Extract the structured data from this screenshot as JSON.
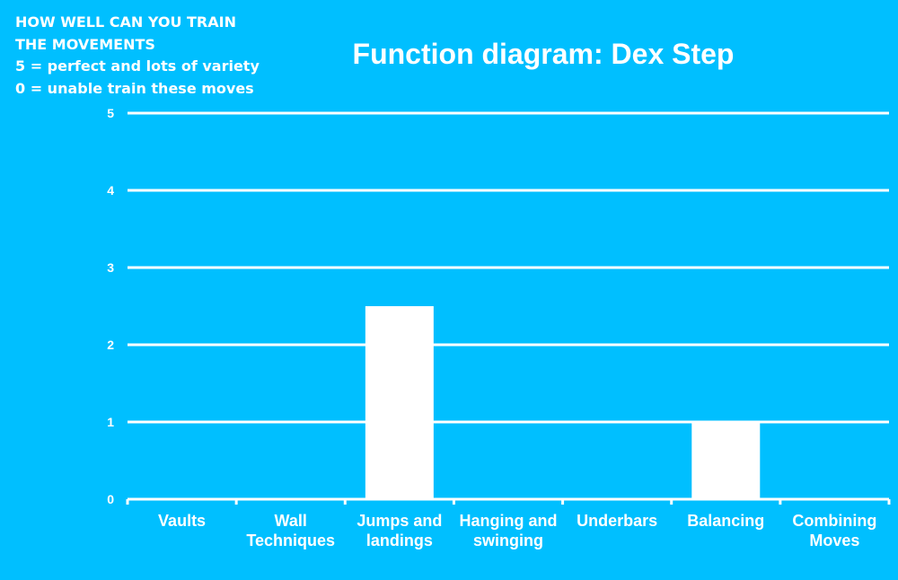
{
  "note": {
    "lines": [
      "HOW WELL CAN YOU TRAIN",
      "THE MOVEMENTS",
      "5 = perfect and lots of variety",
      "0 = unable train these moves"
    ]
  },
  "colors": {
    "background": "#00BFFF",
    "bars": "#FFFFFF",
    "gridlines": "#FFFFFF",
    "text": "#FFFFFF"
  },
  "chart_data": {
    "type": "bar",
    "title": "Function diagram: Dex Step",
    "xlabel": "",
    "ylabel": "",
    "categories": [
      "Vaults",
      "Wall Techniques",
      "Jumps and landings",
      "Hanging and swinging",
      "Underbars",
      "Balancing",
      "Combining Moves"
    ],
    "category_lines": [
      [
        "Vaults"
      ],
      [
        "Wall",
        "Techniques"
      ],
      [
        "Jumps and",
        "landings"
      ],
      [
        "Hanging and",
        "swinging"
      ],
      [
        "Underbars"
      ],
      [
        "Balancing"
      ],
      [
        "Combining",
        "Moves"
      ]
    ],
    "values": [
      0,
      0,
      2.5,
      0,
      0,
      1,
      0
    ],
    "ylim": [
      0,
      5
    ],
    "yticks": [
      0,
      1,
      2,
      3,
      4,
      5
    ],
    "grid": true,
    "legend": "none"
  }
}
